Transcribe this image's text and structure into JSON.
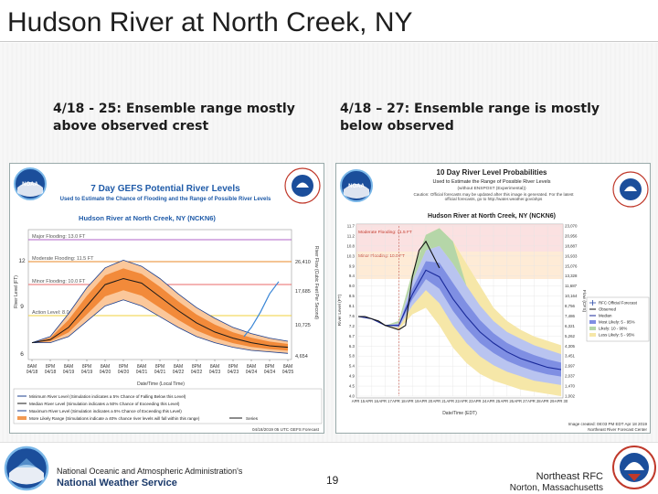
{
  "slide": {
    "title": "Hudson River at North Creek, NY",
    "page_number": "19"
  },
  "captions": {
    "left": "4/18 - 25: Ensemble range mostly above observed crest",
    "right": "4/18 – 27: Ensemble range is mostly below observed"
  },
  "footer": {
    "agency_line1": "National Oceanic and Atmospheric Administration's",
    "agency_line2": "National Weather Service",
    "rfc_line1": "Northeast RFC",
    "rfc_line2": "Norton, Massachusetts"
  },
  "left_chart": {
    "logo_text": "NOAA",
    "seal_text": "NATIONAL WEATHER SERVICE",
    "title": "7 Day GEFS Potential River Levels",
    "subtitle": "Used to Estimate the Chance of Flooding and the Range of Possible River Levels",
    "location": "Hudson River at North Creek, NY (NCKN6)",
    "major_label": "Major Flooding: 13.0 FT",
    "moderate_label": "Moderate Flooding: 11.5 FT",
    "minor_label": "Minor Flooding: 10.0 FT",
    "action_label": "Action Level: 8.0 FT",
    "y_ticks": [
      "12",
      "9",
      "6"
    ],
    "right_ticks": [
      "26,410",
      "17,685",
      "10,725",
      "4,654"
    ],
    "x_ticks": [
      "8AM 04/18",
      "8PM 04/18",
      "8AM 04/19",
      "8PM 04/19",
      "8AM 04/20",
      "8PM 04/20",
      "8AM 04/21",
      "8PM 04/21",
      "8AM 04/22",
      "8PM 04/22",
      "8AM 04/23",
      "8PM 04/23",
      "8AM 04/24",
      "8PM 04/24",
      "8AM 04/25"
    ],
    "y_axis_label": "River Level (FT)",
    "right_axis_label": "River Flow (Cubic Feet Per Second)",
    "x_axis_label": "Date/Time (Local Time)",
    "legend": [
      "Minimum River Level (Simulation indicates a 5% Chance of Falling Below this Level)",
      "Median River Level (Simulation indicates a 50% Chance of Exceeding this Level)",
      "Maximum River Level (Simulation indicates a 5% Chance of Exceeding this Level)",
      "More Likely Range (Simulations indicate a 40% chance river levels will fall within this range)"
    ],
    "legend_extra": "Series",
    "timestamp": "04/18/2019 05 UTC GEFS Forecast",
    "chart_data": {
      "type": "area",
      "x": [
        "04/18 08AM",
        "04/18 08PM",
        "04/19 08AM",
        "04/19 08PM",
        "04/20 08AM",
        "04/20 08PM",
        "04/21 08AM",
        "04/21 08PM",
        "04/22 08AM",
        "04/22 08PM",
        "04/23 08AM",
        "04/23 08PM",
        "04/24 08AM",
        "04/24 08PM",
        "04/25 08AM"
      ],
      "series": [
        {
          "name": "Maximum River Level",
          "values": [
            6.6,
            7.0,
            8.5,
            10.2,
            11.5,
            12.0,
            11.6,
            10.8,
            9.8,
            8.9,
            8.2,
            7.6,
            7.2,
            6.9,
            6.7
          ]
        },
        {
          "name": "Median River Level",
          "values": [
            6.6,
            6.8,
            7.6,
            9.0,
            10.4,
            10.8,
            10.5,
            9.6,
            8.7,
            7.9,
            7.3,
            6.9,
            6.6,
            6.4,
            6.3
          ]
        },
        {
          "name": "Minimum River Level",
          "values": [
            6.6,
            6.6,
            7.0,
            8.0,
            9.0,
            9.4,
            9.0,
            8.3,
            7.6,
            7.0,
            6.6,
            6.3,
            6.1,
            6.0,
            5.9
          ]
        }
      ],
      "observed": {
        "name": "Observed",
        "x_index": [
          11.6,
          12.0,
          12.5,
          13.0,
          13.5
        ],
        "values": [
          7.0,
          7.6,
          8.6,
          9.8,
          10.6
        ]
      },
      "ylim": [
        5.5,
        14
      ]
    }
  },
  "right_chart": {
    "logo_text": "NOAA",
    "seal_text": "NATIONAL WEATHER SERVICE",
    "title": "10 Day River Level Probabilities",
    "subtitle": "Used to Estimate the Range of Possible River Levels",
    "subtitle2": "(without ENSPOST (Experimental))",
    "caution": "Caution: Official forecasts may be updated after this image is generated. For the latest official forecasts, go to http://water.weather.gov/ahps",
    "location": "Hudson River at North Creek, NY (NCKN6)",
    "moderate_label": "Moderate Flooding: 11.5 FT",
    "minor_label": "Minor Flooding: 10.0 FT",
    "y_ticks": [
      "11.7",
      "11.2",
      "10.8",
      "10.3",
      "9.9",
      "9.4",
      "9.0",
      "8.5",
      "8.1",
      "7.6",
      "7.2",
      "6.7",
      "6.3",
      "5.8",
      "5.4",
      "4.9",
      "4.5",
      "4.0"
    ],
    "right_ticks": [
      "23,070",
      "20,956",
      "18,887",
      "16,933",
      "15,076",
      "13,328",
      "11,687",
      "10,164",
      "8,756",
      "7,486",
      "6,321",
      "5,262",
      "4,305",
      "3,451",
      "2,697",
      "2,037",
      "1,470",
      "1,002"
    ],
    "y_axis_label": "River Level (FT)",
    "right_axis_label": "Flow (CFS)",
    "x_ticks": [
      "APR 15",
      "APR 16",
      "APR 17",
      "APR 18",
      "APR 19",
      "APR 20",
      "APR 21",
      "APR 22",
      "APR 23",
      "APR 24",
      "APR 25",
      "APR 26",
      "APR 27",
      "APR 28",
      "APR 29",
      "APR 30"
    ],
    "x_axis_label": "Date/Time (EDT)",
    "legend": [
      "RFC Official Forecast",
      "Observed",
      "Median",
      "Most Likely: 5 - 95%",
      "Likely: 10 - 90%",
      "Less Likely: 5 - 95%"
    ],
    "timestamp": "Image created: 08:03 PM EDT Apr 18 2019",
    "producer": "Northeast River Forecast Center",
    "chart_data": {
      "type": "area",
      "x": [
        "APR 15",
        "APR 16",
        "APR 17",
        "APR 18",
        "APR 19",
        "APR 20",
        "APR 21",
        "APR 22",
        "APR 23",
        "APR 24",
        "APR 25",
        "APR 26",
        "APR 27",
        "APR 28",
        "APR 29",
        "APR 30"
      ],
      "series": [
        {
          "name": "Less Likely upper",
          "values": [
            7.6,
            7.5,
            7.2,
            7.4,
            9.6,
            11.3,
            11.6,
            11.0,
            10.0,
            9.0,
            8.0,
            7.4,
            7.0,
            6.7,
            6.5,
            6.3
          ]
        },
        {
          "name": "Likely upper",
          "values": [
            7.6,
            7.5,
            7.2,
            7.3,
            9.2,
            10.6,
            10.8,
            10.0,
            9.0,
            8.1,
            7.4,
            6.9,
            6.6,
            6.3,
            6.1,
            5.9
          ]
        },
        {
          "name": "Median",
          "values": [
            7.6,
            7.5,
            7.2,
            7.2,
            8.6,
            9.7,
            9.4,
            8.4,
            7.6,
            6.9,
            6.4,
            6.0,
            5.7,
            5.5,
            5.3,
            5.2
          ]
        },
        {
          "name": "Likely lower",
          "values": [
            7.6,
            7.5,
            7.2,
            7.1,
            8.1,
            8.8,
            8.2,
            7.2,
            6.4,
            5.8,
            5.4,
            5.1,
            4.9,
            4.7,
            4.6,
            4.5
          ]
        },
        {
          "name": "Less Likely lower",
          "values": [
            7.6,
            7.5,
            7.2,
            7.0,
            7.7,
            8.0,
            7.2,
            6.2,
            5.5,
            5.0,
            4.7,
            4.5,
            4.3,
            4.2,
            4.1,
            4.0
          ]
        }
      ],
      "observed": {
        "name": "Observed",
        "x_index": [
          0,
          0.5,
          1,
          1.5,
          2,
          2.5,
          3,
          3.5,
          4,
          4.5,
          5,
          5.5,
          6
        ],
        "values": [
          7.6,
          7.6,
          7.5,
          7.4,
          7.2,
          7.1,
          7.0,
          7.2,
          9.4,
          10.6,
          11.0,
          10.4,
          9.8
        ]
      },
      "ylim": [
        4.0,
        11.7
      ]
    }
  }
}
